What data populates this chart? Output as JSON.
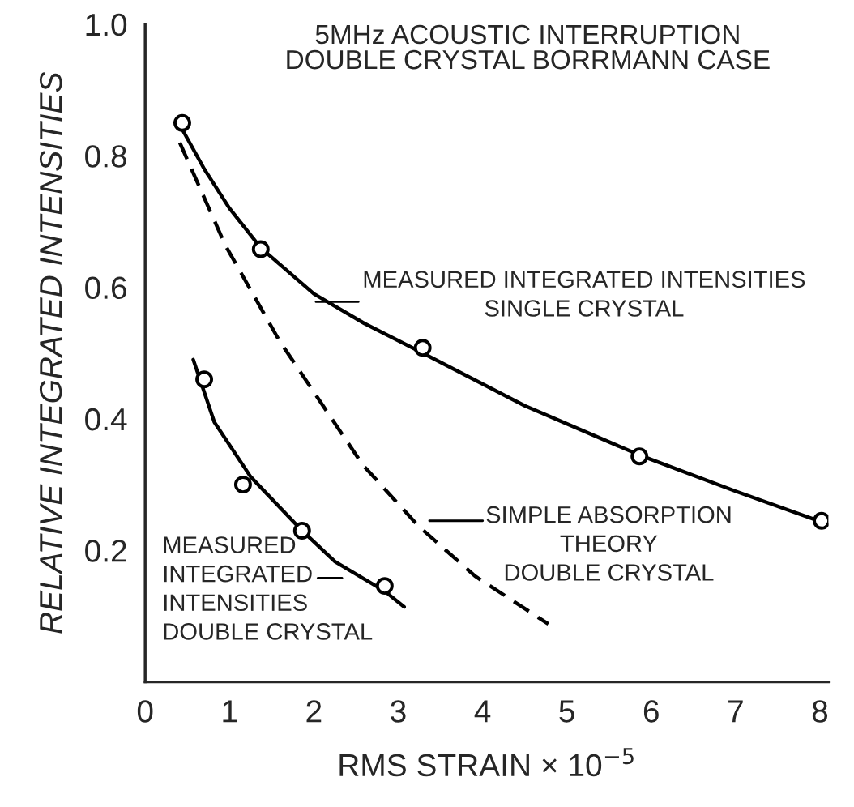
{
  "chart_data": {
    "type": "line",
    "title": "5MHz ACOUSTIC INTERRUPTION\nDOUBLE CRYSTAL BORRMANN CASE",
    "xlabel": "RMS STRAIN × 10$^{−5}$",
    "ylabel": "RELATIVE INTEGRATED INTENSITIES",
    "xlim": [
      0,
      8.1
    ],
    "ylim": [
      0,
      1.0
    ],
    "xticks": [
      0,
      1,
      2,
      3,
      4,
      5,
      6,
      7,
      8
    ],
    "yticks": [
      {
        "value": 0.2,
        "label": "0.2"
      },
      {
        "value": 0.4,
        "label": "0.4"
      },
      {
        "value": 0.6,
        "label": "0.6"
      },
      {
        "value": 0.8,
        "label": "0.8"
      },
      {
        "value": 1.0,
        "label": "1.0"
      }
    ],
    "grid": false,
    "legend": false,
    "series": [
      {
        "type": "scatter",
        "color": "#000000",
        "marker": "circle",
        "x": [
          0.44,
          1.37,
          3.29,
          5.86,
          8.02
        ],
        "values": [
          0.85,
          0.658,
          0.508,
          0.343,
          0.245
        ]
      },
      {
        "color": "#000000",
        "marker": "none",
        "line_style": "solid",
        "x": [
          0.44,
          0.7,
          1.0,
          1.37,
          2.0,
          2.6,
          3.29,
          4.5,
          5.86,
          7.0,
          8.09
        ],
        "values": [
          0.84,
          0.78,
          0.72,
          0.66,
          0.59,
          0.545,
          0.5,
          0.42,
          0.345,
          0.29,
          0.24
        ]
      },
      {
        "type": "scatter",
        "color": "#000000",
        "marker": "circle",
        "x": [
          0.7,
          1.16,
          1.86,
          2.84
        ],
        "values": [
          0.46,
          0.3,
          0.23,
          0.146
        ]
      },
      {
        "color": "#000000",
        "marker": "none",
        "line_style": "solid",
        "x": [
          0.57,
          0.82,
          1.25,
          1.86,
          2.25,
          2.84,
          3.07
        ],
        "values": [
          0.49,
          0.395,
          0.312,
          0.23,
          0.183,
          0.138,
          0.114
        ]
      },
      {
        "color": "#000000",
        "marker": "none",
        "line_style": "dashed",
        "x": [
          0.41,
          0.95,
          1.59,
          2.58,
          3.24,
          3.91,
          4.78
        ],
        "values": [
          0.82,
          0.664,
          0.519,
          0.33,
          0.237,
          0.161,
          0.088
        ]
      }
    ],
    "annotations": [
      "MEASURED INTEGRATED INTENSITIES\nSINGLE CRYSTAL",
      "SIMPLE ABSORPTION\nTHEORY\nDOUBLE CRYSTAL",
      "MEASURED\nINTEGRATED\nINTENSITIES\nDOUBLE CRYSTAL"
    ]
  }
}
